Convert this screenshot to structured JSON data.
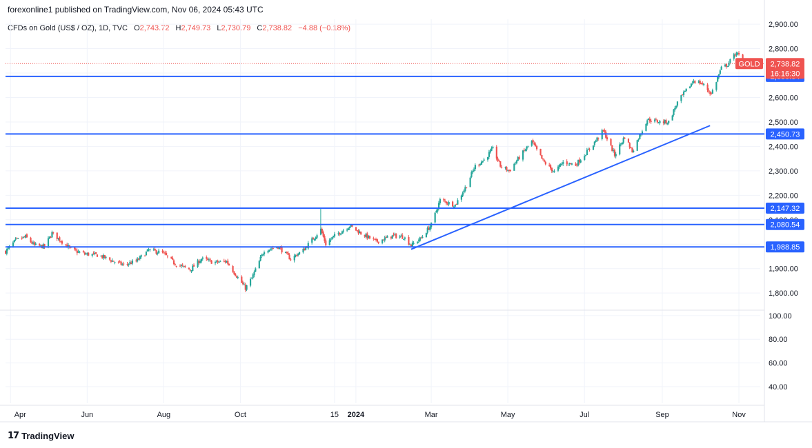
{
  "header": {
    "publisher": "forexonline1 published on TradingView.com, Nov 06, 2024 05:43 UTC"
  },
  "legend": {
    "symbol": "CFDs on Gold (US$ / OZ), 1D, TVC",
    "open_label": "O",
    "open": "2,743.72",
    "high_label": "H",
    "high": "2,749.73",
    "low_label": "L",
    "low": "2,730.79",
    "close_label": "C",
    "close": "2,738.82",
    "change": "−4.88 (−0.18%)"
  },
  "footer": {
    "brand": "TradingView",
    "logo_icon": "tradingview-logo-icon"
  },
  "colors": {
    "up": "#26a69a",
    "down": "#ef5350",
    "hline": "#2962ff",
    "trend": "#2962ff",
    "price_label": "#ef5350",
    "level_label": "#2962ff"
  },
  "chart_data": {
    "type": "candlestick",
    "price_axis": {
      "ticks": [
        1800,
        1900,
        2000,
        2100,
        2200,
        2300,
        2400,
        2500,
        2600,
        2700,
        2800,
        2900
      ],
      "tick_labels": [
        "1,800.00",
        "1,900.00",
        "2,000.00",
        "2,100.00",
        "2,200.00",
        "2,300.00",
        "2,400.00",
        "2,500.00",
        "2,600.00",
        "2,700.00",
        "2,800.00",
        "2,900.00"
      ],
      "range": [
        1730,
        2920
      ]
    },
    "lower_axis": {
      "ticks": [
        40,
        60,
        80,
        100
      ],
      "tick_labels": [
        "40.00",
        "60.00",
        "80.00",
        "100.00"
      ],
      "range": [
        26,
        104
      ]
    },
    "time_axis": {
      "labels": [
        "Apr",
        "Jun",
        "Aug",
        "Oct",
        "15",
        "2024",
        "Mar",
        "May",
        "Jul",
        "Sep",
        "Nov"
      ],
      "dates": [
        "2023-04-01",
        "2023-06-01",
        "2023-08-01",
        "2023-10-01",
        "2023-12-15",
        "2024-01-01",
        "2024-03-01",
        "2024-05-01",
        "2024-07-01",
        "2024-09-01",
        "2024-11-01"
      ],
      "range": [
        "2023-03-28",
        "2024-11-18"
      ]
    },
    "horizontal_levels": [
      {
        "value": 2686.34,
        "label": "2,686.34"
      },
      {
        "value": 2450.73,
        "label": "2,450.73"
      },
      {
        "value": 2147.32,
        "label": "2,147.32"
      },
      {
        "value": 2080.54,
        "label": "2,080.54"
      },
      {
        "value": 1988.85,
        "label": "1,988.85"
      }
    ],
    "trendline": {
      "from": {
        "date": "2024-02-14",
        "price": 1979
      },
      "to": {
        "date": "2024-10-09",
        "price": 2485
      }
    },
    "current_price": {
      "value": 2738.82,
      "label": "2,738.82",
      "symbol": "GOLD",
      "countdown": "16:16:30"
    },
    "close_path": [
      [
        "2023-03-28",
        1970
      ],
      [
        "2023-04-05",
        2015
      ],
      [
        "2023-04-13",
        2030
      ],
      [
        "2023-04-20",
        1995
      ],
      [
        "2023-04-28",
        1990
      ],
      [
        "2023-05-04",
        2045
      ],
      [
        "2023-05-12",
        2010
      ],
      [
        "2023-05-20",
        1975
      ],
      [
        "2023-05-30",
        1960
      ],
      [
        "2023-06-10",
        1955
      ],
      [
        "2023-06-22",
        1930
      ],
      [
        "2023-06-30",
        1915
      ],
      [
        "2023-07-10",
        1930
      ],
      [
        "2023-07-20",
        1975
      ],
      [
        "2023-07-31",
        1965
      ],
      [
        "2023-08-10",
        1920
      ],
      [
        "2023-08-22",
        1895
      ],
      [
        "2023-08-31",
        1940
      ],
      [
        "2023-09-10",
        1925
      ],
      [
        "2023-09-20",
        1930
      ],
      [
        "2023-09-28",
        1870
      ],
      [
        "2023-10-05",
        1820
      ],
      [
        "2023-10-10",
        1860
      ],
      [
        "2023-10-20",
        1975
      ],
      [
        "2023-10-31",
        1990
      ],
      [
        "2023-11-10",
        1940
      ],
      [
        "2023-11-20",
        1975
      ],
      [
        "2023-11-30",
        2035
      ],
      [
        "2023-12-04",
        2060
      ],
      [
        "2023-12-08",
        2000
      ],
      [
        "2023-12-14",
        2030
      ],
      [
        "2023-12-27",
        2075
      ],
      [
        "2024-01-05",
        2045
      ],
      [
        "2024-01-17",
        2010
      ],
      [
        "2024-01-31",
        2035
      ],
      [
        "2024-02-08",
        2030
      ],
      [
        "2024-02-14",
        1995
      ],
      [
        "2024-02-22",
        2025
      ],
      [
        "2024-03-01",
        2080
      ],
      [
        "2024-03-08",
        2180
      ],
      [
        "2024-03-20",
        2160
      ],
      [
        "2024-03-28",
        2230
      ],
      [
        "2024-04-05",
        2320
      ],
      [
        "2024-04-12",
        2345
      ],
      [
        "2024-04-19",
        2390
      ],
      [
        "2024-04-25",
        2320
      ],
      [
        "2024-05-02",
        2300
      ],
      [
        "2024-05-10",
        2355
      ],
      [
        "2024-05-20",
        2420
      ],
      [
        "2024-05-29",
        2340
      ],
      [
        "2024-06-07",
        2295
      ],
      [
        "2024-06-14",
        2335
      ],
      [
        "2024-06-24",
        2325
      ],
      [
        "2024-07-05",
        2390
      ],
      [
        "2024-07-16",
        2465
      ],
      [
        "2024-07-25",
        2365
      ],
      [
        "2024-08-02",
        2440
      ],
      [
        "2024-08-08",
        2380
      ],
      [
        "2024-08-20",
        2510
      ],
      [
        "2024-08-30",
        2500
      ],
      [
        "2024-09-06",
        2500
      ],
      [
        "2024-09-13",
        2580
      ],
      [
        "2024-09-26",
        2670
      ],
      [
        "2024-10-03",
        2655
      ],
      [
        "2024-10-10",
        2615
      ],
      [
        "2024-10-18",
        2720
      ],
      [
        "2024-10-23",
        2735
      ],
      [
        "2024-10-30",
        2785
      ],
      [
        "2024-11-05",
        2738.82
      ]
    ]
  }
}
